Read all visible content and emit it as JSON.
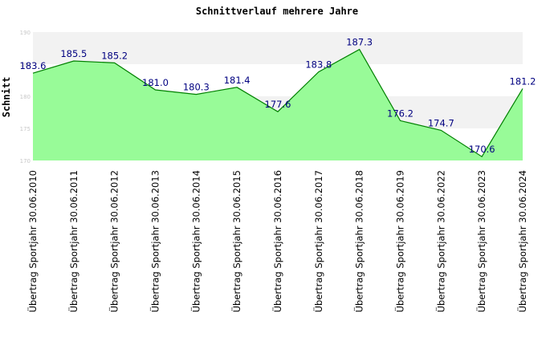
{
  "chart_data": {
    "type": "area",
    "title": "Schnittverlauf mehrere Jahre",
    "xlabel": "",
    "ylabel": "Schnitt",
    "categories": [
      "Übertrag Sportjahr 30.06.2010",
      "Übertrag Sportjahr 30.06.2011",
      "Übertrag Sportjahr 30.06.2012",
      "Übertrag Sportjahr 30.06.2013",
      "Übertrag Sportjahr 30.06.2014",
      "Übertrag Sportjahr 30.06.2015",
      "Übertrag Sportjahr 30.06.2016",
      "Übertrag Sportjahr 30.06.2017",
      "Übertrag Sportjahr 30.06.2018",
      "Übertrag Sportjahr 30.06.2019",
      "Übertrag Sportjahr 30.06.2022",
      "Übertrag Sportjahr 30.06.2023",
      "Übertrag Sportjahr 30.06.2024"
    ],
    "values": [
      183.6,
      185.5,
      185.2,
      181.0,
      180.3,
      181.4,
      177.6,
      183.8,
      187.3,
      176.2,
      174.7,
      170.6,
      181.2
    ],
    "data_labels": [
      "183.6",
      "185.5",
      "185.2",
      "181.0",
      "180.3",
      "181.4",
      "177.6",
      "183.8",
      "187.3",
      "176.2",
      "174.7",
      "170.6",
      "181.2"
    ],
    "ylim": [
      170,
      190
    ],
    "yticks": [
      "170",
      "175",
      "180",
      "185",
      "190"
    ],
    "grid": "alternating horizontal bands",
    "legend": "none",
    "colors": {
      "fill": "#98fb98",
      "line": "#008000",
      "band_light": "#f2f2f2",
      "band_white": "#ffffff",
      "data_label": "#000080",
      "tick_label": "#c8c8c8"
    }
  }
}
